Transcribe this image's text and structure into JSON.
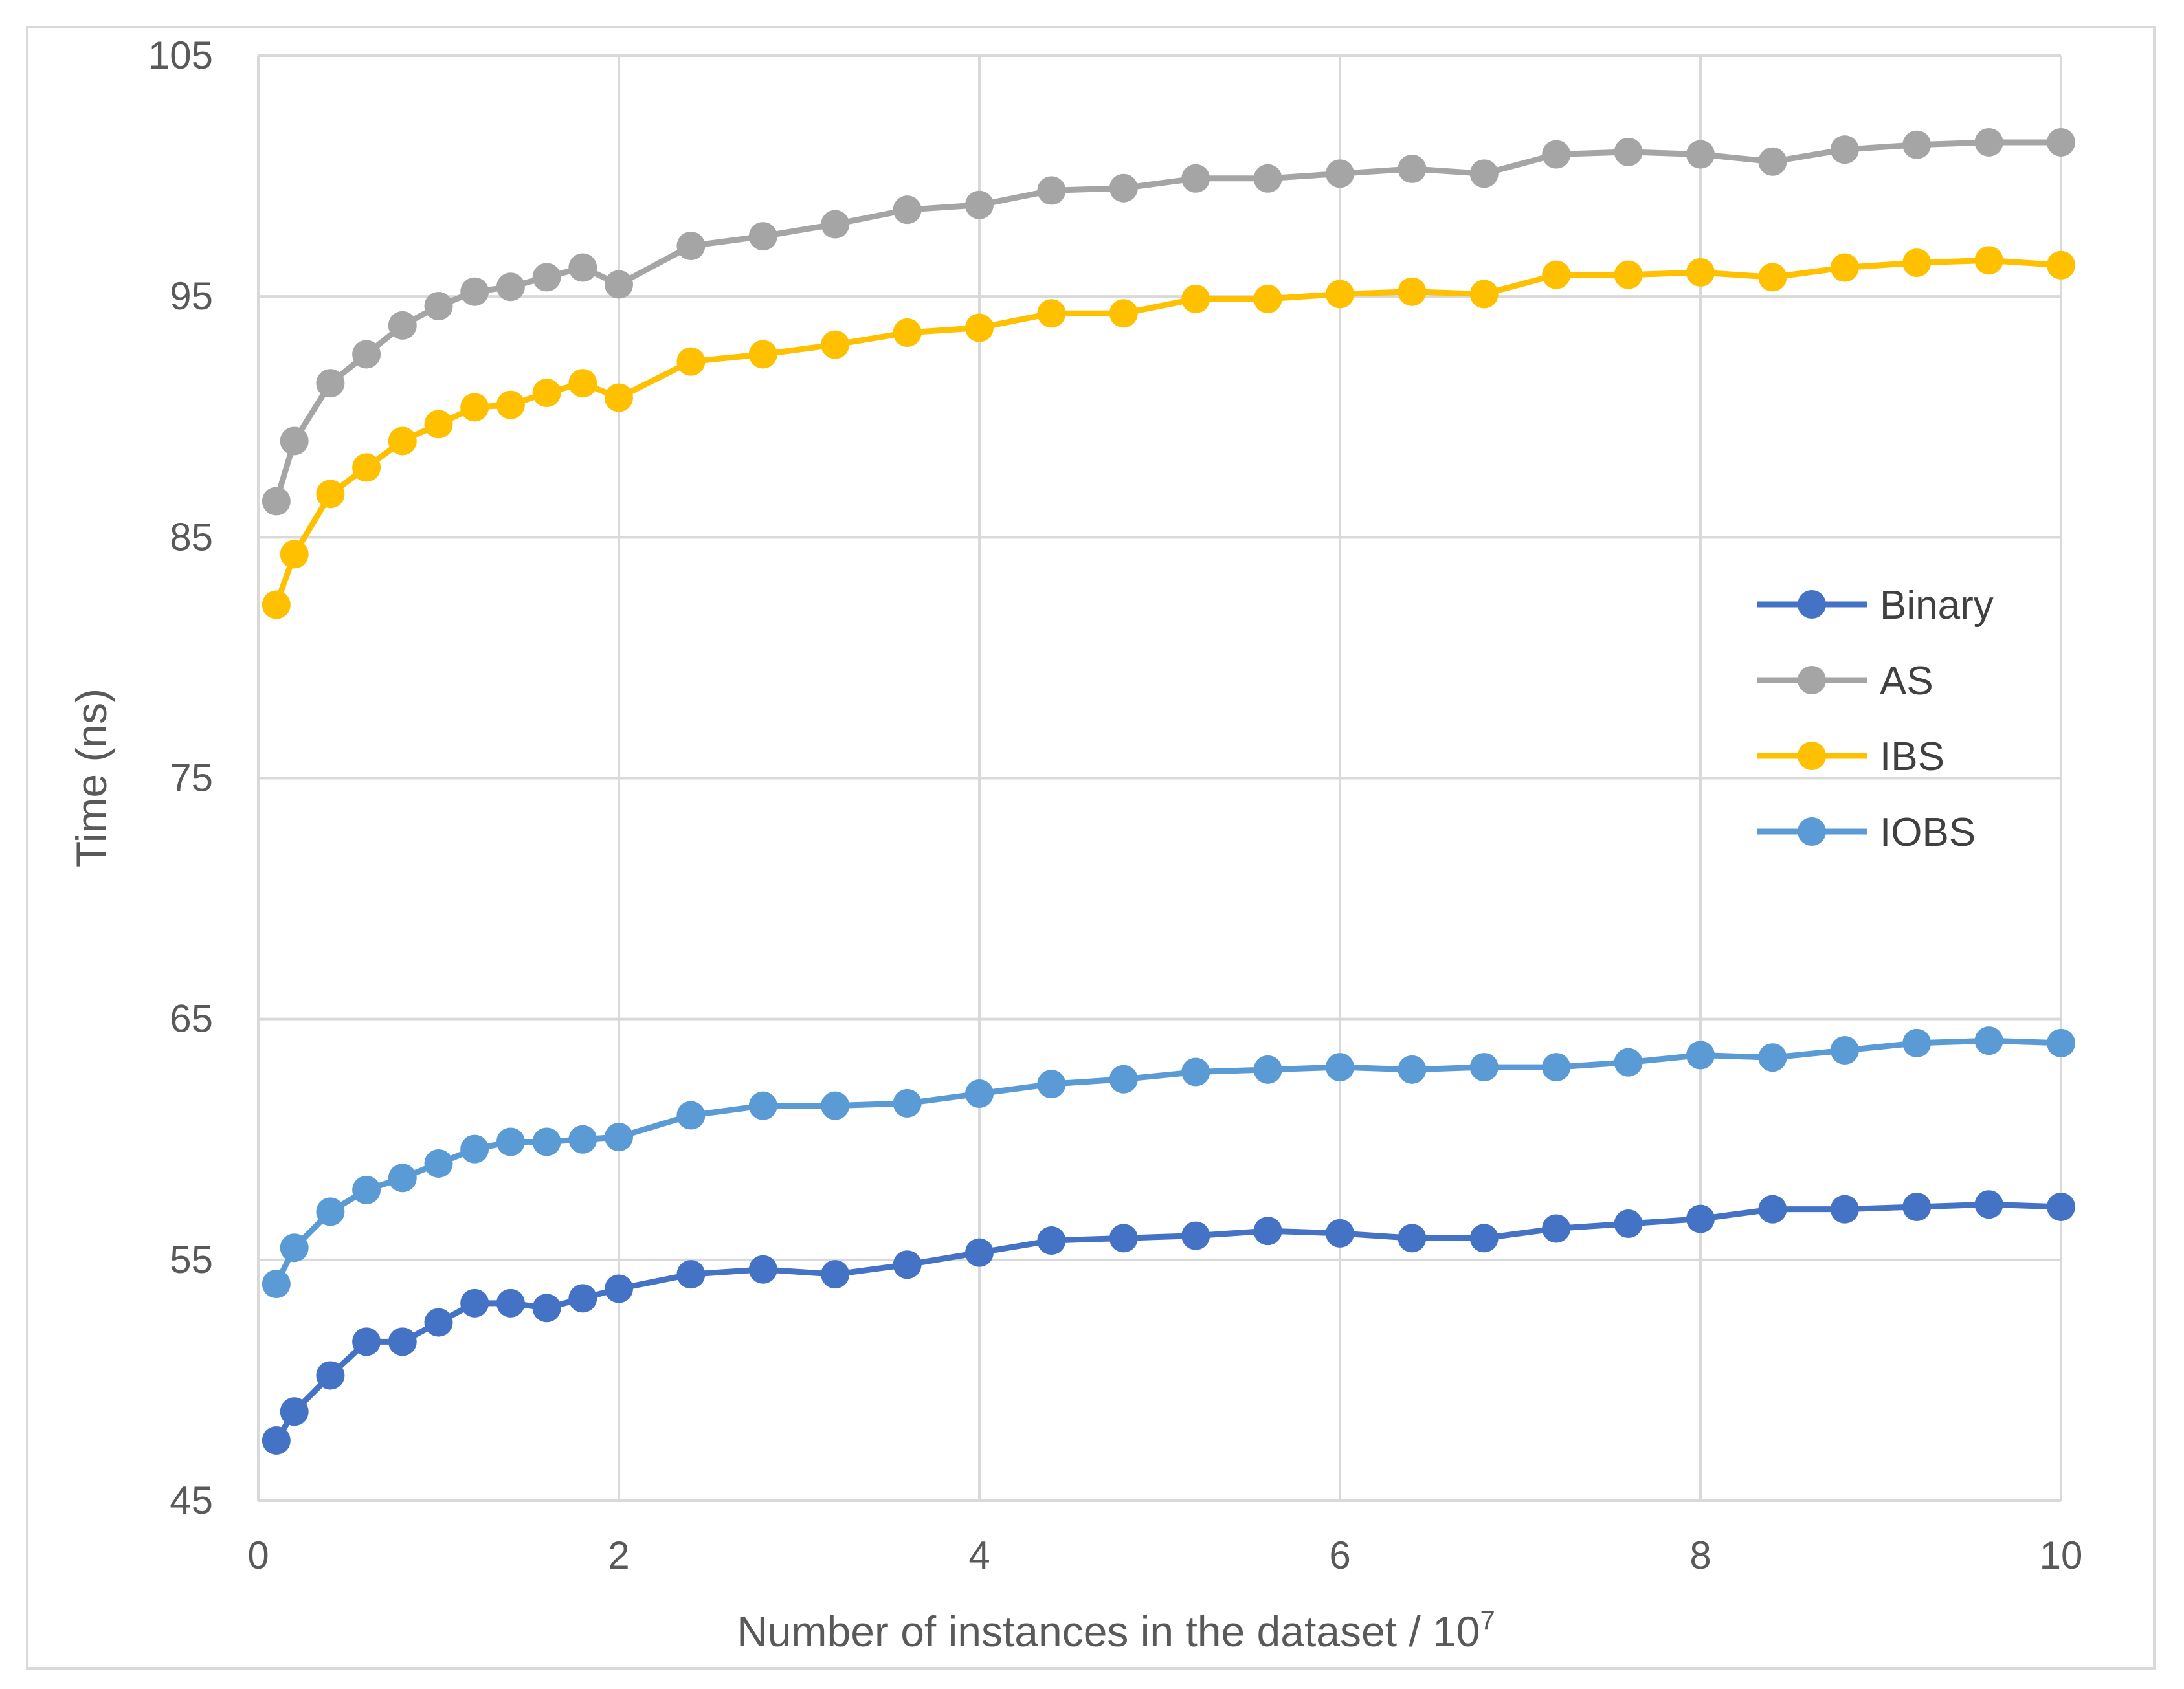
{
  "chart_data": {
    "type": "line",
    "title": "",
    "xlabel": "Number of instances in the dataset / 10",
    "xlabel_superscript": "7",
    "ylabel": "Time (ns)",
    "xlim": [
      0,
      10
    ],
    "ylim": [
      45,
      105
    ],
    "xticks": [
      0,
      2,
      4,
      6,
      8,
      10
    ],
    "xtick_labels": [
      "0",
      "2",
      "4",
      "6",
      "8",
      "10"
    ],
    "yticks": [
      45,
      55,
      65,
      75,
      85,
      95,
      105
    ],
    "ytick_labels": [
      "45",
      "55",
      "65",
      "75",
      "85",
      "95",
      "105"
    ],
    "grid": true,
    "legend_position": "right-middle",
    "x": [
      0.1,
      0.2,
      0.4,
      0.6,
      0.8,
      1.0,
      1.2,
      1.4,
      1.6,
      1.8,
      2.0,
      2.4,
      2.8,
      3.2,
      3.6,
      4.0,
      4.4,
      4.8,
      5.2,
      5.6,
      6.0,
      6.4,
      6.8,
      7.2,
      7.6,
      8.0,
      8.4,
      8.8,
      9.2,
      9.6,
      10.0
    ],
    "series": [
      {
        "name": "Binary",
        "color": "#4472c4",
        "values": [
          47.5,
          48.7,
          50.2,
          51.6,
          51.6,
          52.4,
          53.2,
          53.2,
          53.0,
          53.4,
          53.8,
          54.4,
          54.6,
          54.4,
          54.8,
          55.3,
          55.8,
          55.9,
          56.0,
          56.2,
          56.1,
          55.9,
          55.9,
          56.3,
          56.5,
          56.7,
          57.1,
          57.1,
          57.2,
          57.3,
          57.2
        ]
      },
      {
        "name": "AS",
        "color": "#a5a5a5",
        "values": [
          86.5,
          89.0,
          91.4,
          92.6,
          93.8,
          94.6,
          95.2,
          95.4,
          95.8,
          96.2,
          95.5,
          97.1,
          97.5,
          98.0,
          98.6,
          98.8,
          99.4,
          99.5,
          99.9,
          99.9,
          100.1,
          100.3,
          100.1,
          100.9,
          101.0,
          100.9,
          100.6,
          101.1,
          101.3,
          101.4,
          101.4
        ]
      },
      {
        "name": "IBS",
        "color": "#ffc000",
        "values": [
          82.2,
          84.3,
          86.8,
          87.9,
          89.0,
          89.7,
          90.4,
          90.5,
          91.0,
          91.4,
          90.8,
          92.3,
          92.6,
          93.0,
          93.5,
          93.7,
          94.3,
          94.3,
          94.9,
          94.9,
          95.1,
          95.2,
          95.1,
          95.9,
          95.9,
          96.0,
          95.8,
          96.2,
          96.4,
          96.5,
          96.3
        ]
      },
      {
        "name": "IOBS",
        "color": "#5b9bd5",
        "values": [
          54.0,
          55.5,
          57.0,
          57.9,
          58.4,
          59.0,
          59.6,
          59.9,
          59.9,
          60.0,
          60.1,
          61.0,
          61.4,
          61.4,
          61.5,
          61.9,
          62.3,
          62.5,
          62.8,
          62.9,
          63.0,
          62.9,
          63.0,
          63.0,
          63.2,
          63.5,
          63.4,
          63.7,
          64.0,
          64.1,
          64.0
        ]
      }
    ]
  }
}
